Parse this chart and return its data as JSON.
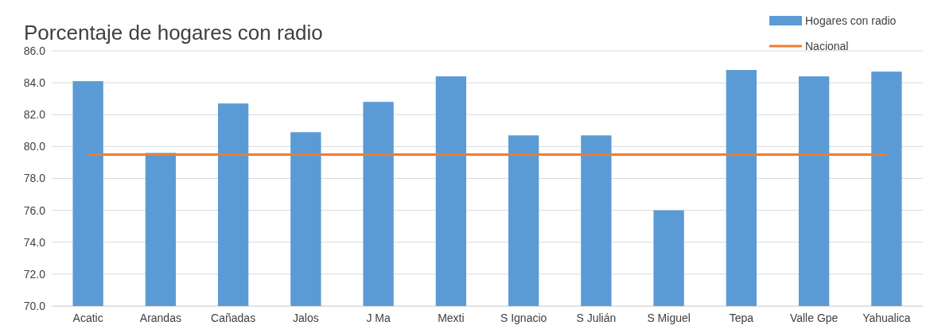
{
  "chart_data": {
    "type": "bar",
    "title": "Porcentaje de hogares con radio",
    "categories": [
      "Acatic",
      "Arandas",
      "Cañadas",
      "Jalos",
      "J Ma",
      "Mexti",
      "S Ignacio",
      "S Julián",
      "S Miguel",
      "Tepa",
      "Valle Gpe",
      "Yahualica"
    ],
    "series": [
      {
        "name": "Hogares con radio",
        "color": "#5b9bd5",
        "values": [
          84.1,
          79.6,
          82.7,
          80.9,
          82.8,
          84.4,
          80.7,
          80.7,
          76.0,
          84.8,
          84.4,
          84.7
        ]
      },
      {
        "name": "Nacional",
        "type": "line",
        "color": "#ed7d31",
        "values": [
          79.5,
          79.5,
          79.5,
          79.5,
          79.5,
          79.5,
          79.5,
          79.5,
          79.5,
          79.5,
          79.5,
          79.5
        ]
      }
    ],
    "ylim": [
      70,
      86
    ],
    "yticks": [
      {
        "value": 70,
        "label": "70.0"
      },
      {
        "value": 72,
        "label": "72.0"
      },
      {
        "value": 74,
        "label": "74.0"
      },
      {
        "value": 76,
        "label": "76.0"
      },
      {
        "value": 78,
        "label": "78.0"
      },
      {
        "value": 80,
        "label": "80.0"
      },
      {
        "value": 82,
        "label": "82.0"
      },
      {
        "value": 84,
        "label": "84.0"
      },
      {
        "value": 86,
        "label": "86.0"
      }
    ],
    "grid": "y",
    "legend": "top right",
    "line_style": "solid",
    "marker": "none"
  }
}
